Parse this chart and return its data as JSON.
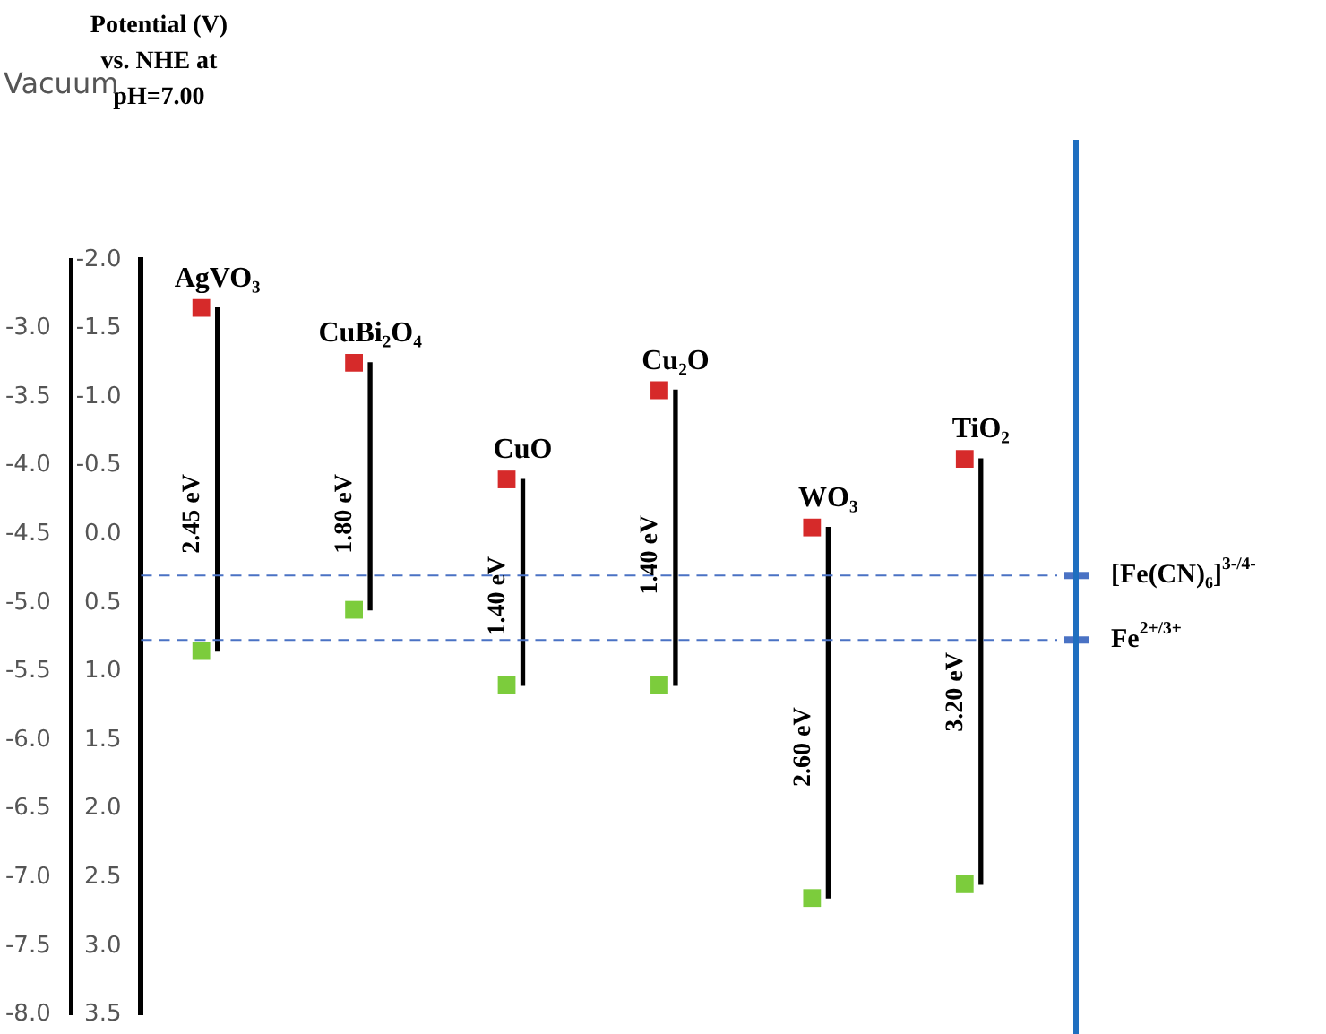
{
  "chart_data": {
    "type": "bar",
    "marker": "square",
    "categories": [
      "AgVO₃",
      "CuBi₂O₄",
      "CuO",
      "Cu₂O",
      "WO₃",
      "TiO₂"
    ],
    "series": [
      {
        "type": "bar",
        "color": "#000000",
        "base": [
          -1.65,
          -1.25,
          -0.4,
          -1.05,
          -0.05,
          -0.55
        ],
        "values": [
          2.5,
          1.8,
          1.5,
          2.15,
          2.7,
          3.1
        ]
      },
      {
        "type": "scatter",
        "color": "#d62a2a",
        "values": [
          -1.65,
          -1.25,
          -0.4,
          -1.05,
          -0.05,
          -0.55
        ]
      },
      {
        "type": "scatter",
        "color": "#7ccc3c",
        "values": [
          0.85,
          0.55,
          1.1,
          1.1,
          2.65,
          2.55
        ]
      }
    ],
    "ylim": [
      3.5,
      -2.0
    ],
    "yticks": [
      {
        "value": -2,
        "label": "-2.0"
      },
      {
        "value": -1.5,
        "label": "-1.5"
      },
      {
        "value": -1,
        "label": "-1.0"
      },
      {
        "value": -0.5,
        "label": "-0.5"
      },
      {
        "value": 0,
        "label": "0.0"
      },
      {
        "value": 0.5,
        "label": "0.5"
      },
      {
        "value": 1,
        "label": "1.0"
      },
      {
        "value": 1.5,
        "label": "1.5"
      },
      {
        "value": 2,
        "label": "2.0"
      },
      {
        "value": 2.5,
        "label": "2.5"
      },
      {
        "value": 3,
        "label": "3.0"
      },
      {
        "value": 3.5,
        "label": "3.5"
      }
    ],
    "y2lim": [
      -8.0,
      -2.5
    ],
    "y2ticks": [
      {
        "value": -3,
        "label": "-3.0"
      },
      {
        "value": -3.5,
        "label": "-3.5"
      },
      {
        "value": -4,
        "label": "-4.0"
      },
      {
        "value": -4.5,
        "label": "-4.5"
      },
      {
        "value": -5,
        "label": "-5.0"
      },
      {
        "value": -5.5,
        "label": "-5.5"
      },
      {
        "value": -6,
        "label": "-6.0"
      },
      {
        "value": -6.5,
        "label": "-6.5"
      },
      {
        "value": -7,
        "label": "-7.0"
      },
      {
        "value": -7.5,
        "label": "-7.5"
      },
      {
        "value": -8,
        "label": "-8.0"
      }
    ],
    "ref_lines": [
      {
        "axis": "y",
        "value": 0.3,
        "label": "[Fe(CN)₆]$^{3-/4-}$",
        "color": "#4a72c4",
        "line_style": "dashed"
      },
      {
        "axis": "y",
        "value": 0.77,
        "label": "Fe$^{2+/3+}$",
        "color": "#4a72c4",
        "line_style": "dashed"
      }
    ],
    "annotations": [
      "Potential (V)\nvs. NHE at\npH=7.00",
      "Vacuum",
      {
        "text": "2.45 eV",
        "x": "AgVO₃",
        "y": -0.15
      },
      {
        "text": "1.80 eV",
        "x": "CuBi₂O₄",
        "y": -0.15
      },
      {
        "text": "1.40 eV",
        "x": "CuO",
        "y": 0.45
      },
      {
        "text": "1.40 eV",
        "x": "Cu₂O",
        "y": 0.15
      },
      {
        "text": "2.60 eV",
        "x": "WO₃",
        "y": 1.55
      },
      {
        "text": "3.20 eV",
        "x": "TiO₂",
        "y": 1.15
      }
    ],
    "grid": false,
    "legend": false
  }
}
